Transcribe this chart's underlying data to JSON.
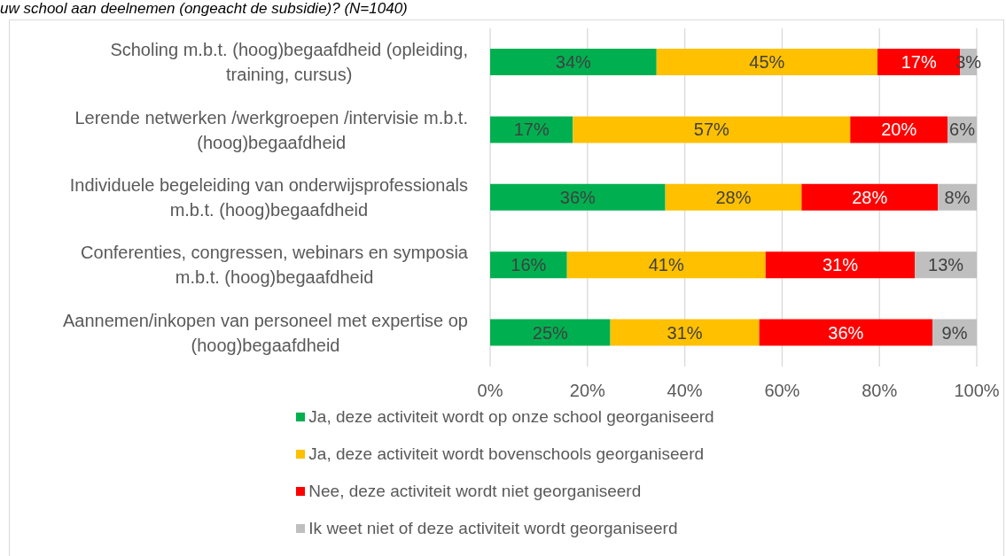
{
  "chart_data": {
    "type": "bar",
    "orientation": "horizontal",
    "stacked": true,
    "title": "uw school aan deelnemen (ongeacht de subsidie)? (N=1040)",
    "categories": [
      "Scholing m.b.t. (hoog)begaafdheid (opleiding, training, cursus)",
      "Lerende netwerken /werkgroepen /intervisie m.b.t. (hoog)begaafdheid",
      "Individuele begeleiding van onderwijsprofessionals m.b.t. (hoog)begaafdheid",
      "Conferenties, congressen, webinars en symposia m.b.t. (hoog)begaafdheid",
      "Aannemen/inkopen van personeel met expertise op (hoog)begaafdheid"
    ],
    "series": [
      {
        "name": "Ja, deze activiteit wordt op onze school georganiseerd",
        "color": "#00b050",
        "values": [
          34.2,
          17,
          36,
          15.8,
          24.7
        ],
        "value_labels": [
          "34%",
          "17%",
          "36%",
          "16%",
          "25%"
        ]
      },
      {
        "name": "Ja, deze activiteit wordt bovenschools georganiseerd",
        "color": "#ffc000",
        "values": [
          45.4,
          57,
          28,
          40.8,
          30.6
        ],
        "value_labels": [
          "45%",
          "57%",
          "28%",
          "41%",
          "31%"
        ]
      },
      {
        "name": "Nee, deze activiteit wordt niet georganiseerd",
        "color": "#ff0000",
        "values": [
          17.0,
          20,
          28,
          30.7,
          35.6
        ],
        "value_labels": [
          "17%",
          "20%",
          "28%",
          "31%",
          "36%"
        ]
      },
      {
        "name": "Ik weet niet of deze activiteit wordt georganiseerd",
        "color": "#bfbfbf",
        "values": [
          3.4,
          6,
          8,
          12.7,
          9.1
        ],
        "value_labels": [
          "3%",
          "6%",
          "8%",
          "13%",
          "9%"
        ]
      }
    ],
    "xlim": [
      0,
      100
    ],
    "xticks": [
      {
        "value": 0,
        "label": "0%"
      },
      {
        "value": 20,
        "label": "20%"
      },
      {
        "value": 40,
        "label": "40%"
      },
      {
        "value": 60,
        "label": "60%"
      },
      {
        "value": 80,
        "label": "80%"
      },
      {
        "value": 100,
        "label": "100%"
      }
    ],
    "grid": "x",
    "legend": "bottom"
  }
}
